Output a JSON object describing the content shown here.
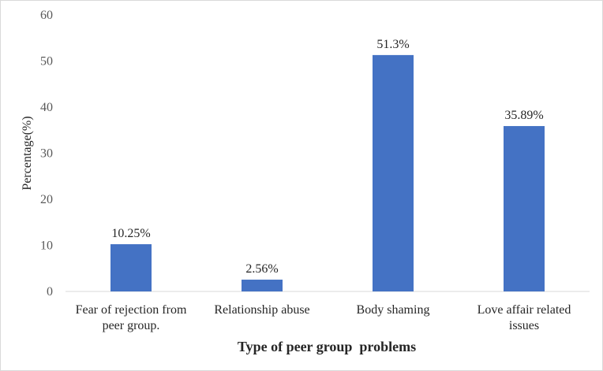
{
  "chart_data": {
    "type": "bar",
    "categories": [
      [
        "Fear of rejection from",
        "peer group."
      ],
      [
        "Relationship abuse"
      ],
      [
        "Body shaming"
      ],
      [
        "Love affair related",
        "issues"
      ]
    ],
    "values": [
      10.25,
      2.56,
      51.3,
      35.89
    ],
    "data_labels": [
      "10.25%",
      "2.56%",
      "51.3%",
      "35.89%"
    ],
    "ylabel": "Percentage(%)",
    "xlabel": "Type of peer group  problems",
    "ylim": [
      0,
      60
    ],
    "yticks": [
      "0",
      "10",
      "20",
      "30",
      "40",
      "50",
      "60"
    ],
    "grid": false,
    "bar_color": "#4472c4"
  }
}
